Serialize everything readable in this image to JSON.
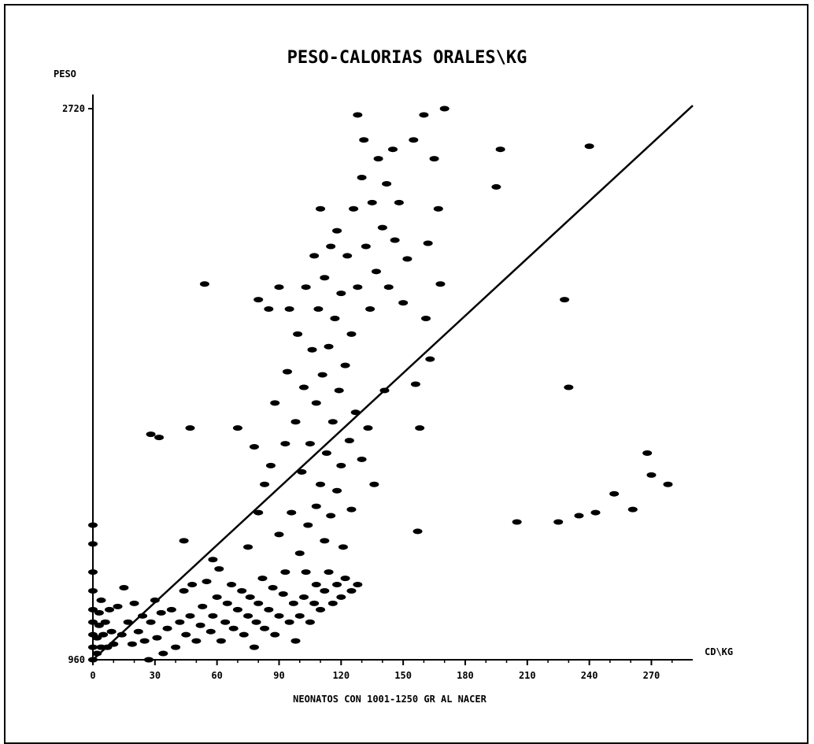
{
  "chart_data": {
    "type": "scatter",
    "title": "PESO-CALORIAS ORALES\\KG",
    "ylabel": "PESO",
    "xlabel": "CD\\KG",
    "footnote": "NEONATOS CON 1001-1250 GR AL NACER",
    "xlim": [
      0,
      290
    ],
    "ylim": [
      960,
      2720
    ],
    "x_ticks": [
      "0",
      "30",
      "60",
      "90",
      "120",
      "150",
      "180",
      "210",
      "240",
      "270"
    ],
    "y_ticks": [
      "960",
      "2720"
    ],
    "trendline": {
      "x": [
        0,
        290
      ],
      "y": [
        960,
        2730
      ]
    },
    "colors": {
      "ink": "#000000",
      "background": "#ffffff"
    },
    "points": [
      {
        "x": 0,
        "y": 960
      },
      {
        "x": 0,
        "y": 1000
      },
      {
        "x": 0,
        "y": 1040
      },
      {
        "x": 0,
        "y": 1080
      },
      {
        "x": 0,
        "y": 1120
      },
      {
        "x": 0,
        "y": 1180
      },
      {
        "x": 0,
        "y": 1240
      },
      {
        "x": 0,
        "y": 1330
      },
      {
        "x": 0,
        "y": 1390
      },
      {
        "x": 2,
        "y": 980
      },
      {
        "x": 2,
        "y": 1030
      },
      {
        "x": 3,
        "y": 1070
      },
      {
        "x": 3,
        "y": 1110
      },
      {
        "x": 4,
        "y": 1000
      },
      {
        "x": 4,
        "y": 1150
      },
      {
        "x": 5,
        "y": 1040
      },
      {
        "x": 6,
        "y": 1080
      },
      {
        "x": 7,
        "y": 1000
      },
      {
        "x": 8,
        "y": 1120
      },
      {
        "x": 9,
        "y": 1050
      },
      {
        "x": 10,
        "y": 1010
      },
      {
        "x": 12,
        "y": 1130
      },
      {
        "x": 14,
        "y": 1040
      },
      {
        "x": 15,
        "y": 1190
      },
      {
        "x": 17,
        "y": 1080
      },
      {
        "x": 19,
        "y": 1010
      },
      {
        "x": 20,
        "y": 1140
      },
      {
        "x": 22,
        "y": 1050
      },
      {
        "x": 24,
        "y": 1100
      },
      {
        "x": 25,
        "y": 1020
      },
      {
        "x": 27,
        "y": 960
      },
      {
        "x": 28,
        "y": 1080
      },
      {
        "x": 30,
        "y": 1150
      },
      {
        "x": 31,
        "y": 1030
      },
      {
        "x": 33,
        "y": 1110
      },
      {
        "x": 34,
        "y": 980
      },
      {
        "x": 36,
        "y": 1060
      },
      {
        "x": 38,
        "y": 1120
      },
      {
        "x": 40,
        "y": 1000
      },
      {
        "x": 42,
        "y": 1080
      },
      {
        "x": 44,
        "y": 1180
      },
      {
        "x": 45,
        "y": 1040
      },
      {
        "x": 47,
        "y": 1100
      },
      {
        "x": 48,
        "y": 1200
      },
      {
        "x": 50,
        "y": 1020
      },
      {
        "x": 52,
        "y": 1070
      },
      {
        "x": 53,
        "y": 1130
      },
      {
        "x": 55,
        "y": 1210
      },
      {
        "x": 57,
        "y": 1050
      },
      {
        "x": 58,
        "y": 1100
      },
      {
        "x": 60,
        "y": 1160
      },
      {
        "x": 61,
        "y": 1250
      },
      {
        "x": 62,
        "y": 1020
      },
      {
        "x": 64,
        "y": 1080
      },
      {
        "x": 65,
        "y": 1140
      },
      {
        "x": 67,
        "y": 1200
      },
      {
        "x": 68,
        "y": 1060
      },
      {
        "x": 70,
        "y": 1120
      },
      {
        "x": 72,
        "y": 1180
      },
      {
        "x": 73,
        "y": 1040
      },
      {
        "x": 75,
        "y": 1100
      },
      {
        "x": 76,
        "y": 1160
      },
      {
        "x": 78,
        "y": 1000
      },
      {
        "x": 79,
        "y": 1080
      },
      {
        "x": 80,
        "y": 1140
      },
      {
        "x": 82,
        "y": 1220
      },
      {
        "x": 83,
        "y": 1060
      },
      {
        "x": 85,
        "y": 1120
      },
      {
        "x": 87,
        "y": 1190
      },
      {
        "x": 88,
        "y": 1040
      },
      {
        "x": 90,
        "y": 1100
      },
      {
        "x": 92,
        "y": 1170
      },
      {
        "x": 93,
        "y": 1240
      },
      {
        "x": 95,
        "y": 1080
      },
      {
        "x": 97,
        "y": 1140
      },
      {
        "x": 98,
        "y": 1020
      },
      {
        "x": 100,
        "y": 1100
      },
      {
        "x": 102,
        "y": 1160
      },
      {
        "x": 103,
        "y": 1240
      },
      {
        "x": 105,
        "y": 1080
      },
      {
        "x": 107,
        "y": 1140
      },
      {
        "x": 108,
        "y": 1200
      },
      {
        "x": 110,
        "y": 1120
      },
      {
        "x": 112,
        "y": 1180
      },
      {
        "x": 114,
        "y": 1240
      },
      {
        "x": 116,
        "y": 1140
      },
      {
        "x": 118,
        "y": 1200
      },
      {
        "x": 120,
        "y": 1160
      },
      {
        "x": 122,
        "y": 1220
      },
      {
        "x": 125,
        "y": 1180
      },
      {
        "x": 128,
        "y": 1200
      },
      {
        "x": 28,
        "y": 1680
      },
      {
        "x": 32,
        "y": 1670
      },
      {
        "x": 44,
        "y": 1340
      },
      {
        "x": 47,
        "y": 1700
      },
      {
        "x": 54,
        "y": 2160
      },
      {
        "x": 58,
        "y": 1280
      },
      {
        "x": 70,
        "y": 1700
      },
      {
        "x": 75,
        "y": 1320
      },
      {
        "x": 78,
        "y": 1640
      },
      {
        "x": 80,
        "y": 2110
      },
      {
        "x": 80,
        "y": 1430
      },
      {
        "x": 83,
        "y": 1520
      },
      {
        "x": 85,
        "y": 2080
      },
      {
        "x": 86,
        "y": 1580
      },
      {
        "x": 88,
        "y": 1780
      },
      {
        "x": 90,
        "y": 2150
      },
      {
        "x": 90,
        "y": 1360
      },
      {
        "x": 93,
        "y": 1650
      },
      {
        "x": 94,
        "y": 1880
      },
      {
        "x": 95,
        "y": 2080
      },
      {
        "x": 96,
        "y": 1430
      },
      {
        "x": 98,
        "y": 1720
      },
      {
        "x": 99,
        "y": 2000
      },
      {
        "x": 100,
        "y": 1300
      },
      {
        "x": 101,
        "y": 1560
      },
      {
        "x": 102,
        "y": 1830
      },
      {
        "x": 103,
        "y": 2150
      },
      {
        "x": 104,
        "y": 1390
      },
      {
        "x": 105,
        "y": 1650
      },
      {
        "x": 106,
        "y": 1950
      },
      {
        "x": 107,
        "y": 2250
      },
      {
        "x": 108,
        "y": 1450
      },
      {
        "x": 108,
        "y": 1780
      },
      {
        "x": 109,
        "y": 2080
      },
      {
        "x": 110,
        "y": 1520
      },
      {
        "x": 110,
        "y": 2400
      },
      {
        "x": 111,
        "y": 1870
      },
      {
        "x": 112,
        "y": 1340
      },
      {
        "x": 112,
        "y": 2180
      },
      {
        "x": 113,
        "y": 1620
      },
      {
        "x": 114,
        "y": 1960
      },
      {
        "x": 115,
        "y": 2280
      },
      {
        "x": 115,
        "y": 1420
      },
      {
        "x": 116,
        "y": 1720
      },
      {
        "x": 117,
        "y": 2050
      },
      {
        "x": 118,
        "y": 1500
      },
      {
        "x": 118,
        "y": 2330
      },
      {
        "x": 119,
        "y": 1820
      },
      {
        "x": 120,
        "y": 1580
      },
      {
        "x": 120,
        "y": 2130
      },
      {
        "x": 121,
        "y": 1320
      },
      {
        "x": 122,
        "y": 1900
      },
      {
        "x": 123,
        "y": 2250
      },
      {
        "x": 124,
        "y": 1660
      },
      {
        "x": 125,
        "y": 1440
      },
      {
        "x": 125,
        "y": 2000
      },
      {
        "x": 126,
        "y": 2400
      },
      {
        "x": 127,
        "y": 1750
      },
      {
        "x": 128,
        "y": 2150
      },
      {
        "x": 128,
        "y": 2700
      },
      {
        "x": 130,
        "y": 1600
      },
      {
        "x": 130,
        "y": 2500
      },
      {
        "x": 131,
        "y": 2620
      },
      {
        "x": 132,
        "y": 2280
      },
      {
        "x": 133,
        "y": 1700
      },
      {
        "x": 134,
        "y": 2080
      },
      {
        "x": 135,
        "y": 2420
      },
      {
        "x": 136,
        "y": 1520
      },
      {
        "x": 137,
        "y": 2200
      },
      {
        "x": 138,
        "y": 2560
      },
      {
        "x": 140,
        "y": 2340
      },
      {
        "x": 141,
        "y": 1820
      },
      {
        "x": 142,
        "y": 2480
      },
      {
        "x": 143,
        "y": 2150
      },
      {
        "x": 145,
        "y": 2590
      },
      {
        "x": 146,
        "y": 2300
      },
      {
        "x": 148,
        "y": 2420
      },
      {
        "x": 150,
        "y": 2100
      },
      {
        "x": 152,
        "y": 2240
      },
      {
        "x": 155,
        "y": 2620
      },
      {
        "x": 156,
        "y": 1840
      },
      {
        "x": 157,
        "y": 1370
      },
      {
        "x": 158,
        "y": 1700
      },
      {
        "x": 160,
        "y": 2700
      },
      {
        "x": 161,
        "y": 2050
      },
      {
        "x": 162,
        "y": 2290
      },
      {
        "x": 163,
        "y": 1920
      },
      {
        "x": 165,
        "y": 2560
      },
      {
        "x": 167,
        "y": 2400
      },
      {
        "x": 168,
        "y": 2160
      },
      {
        "x": 170,
        "y": 2720
      },
      {
        "x": 195,
        "y": 2470
      },
      {
        "x": 197,
        "y": 2590
      },
      {
        "x": 205,
        "y": 1400
      },
      {
        "x": 225,
        "y": 1400
      },
      {
        "x": 230,
        "y": 1830
      },
      {
        "x": 228,
        "y": 2110
      },
      {
        "x": 235,
        "y": 1420
      },
      {
        "x": 240,
        "y": 2600
      },
      {
        "x": 243,
        "y": 1430
      },
      {
        "x": 252,
        "y": 1490
      },
      {
        "x": 261,
        "y": 1440
      },
      {
        "x": 268,
        "y": 1620
      },
      {
        "x": 270,
        "y": 1550
      },
      {
        "x": 278,
        "y": 1520
      }
    ]
  }
}
